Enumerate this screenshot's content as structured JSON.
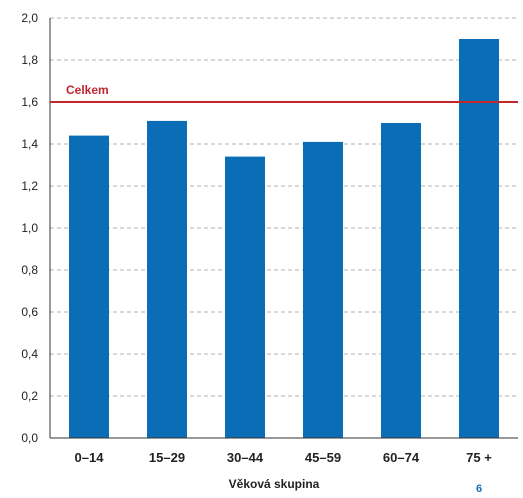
{
  "chart_data": {
    "type": "bar",
    "categories": [
      "0–14",
      "15–29",
      "30–44",
      "45–59",
      "60–74",
      "75 +"
    ],
    "values": [
      1.44,
      1.51,
      1.34,
      1.41,
      1.5,
      1.9
    ],
    "xlabel": "Věková skupina",
    "ylabel": "",
    "ylim": [
      0,
      2.0
    ],
    "yticks": [
      "0,0",
      "0,2",
      "0,4",
      "0,6",
      "0,8",
      "1,0",
      "1,2",
      "1,4",
      "1,6",
      "1,8",
      "2,0"
    ],
    "grid": true,
    "reference_line": {
      "label": "Celkem",
      "value": 1.6
    },
    "colors": {
      "bar": "#0a6db5",
      "reference": "#c1272d",
      "grid": "#b0b0b0",
      "page_number": "#1a6fb0"
    }
  },
  "page_number": "6"
}
